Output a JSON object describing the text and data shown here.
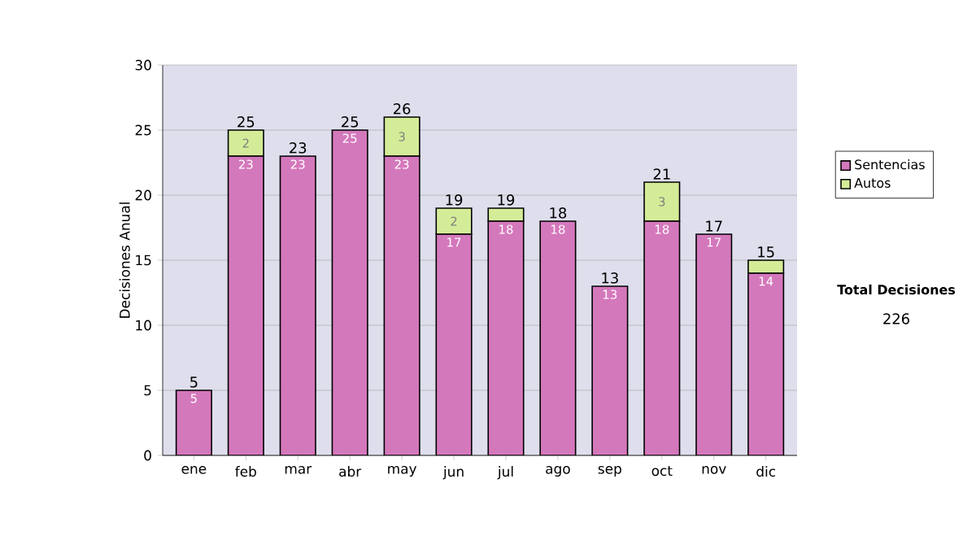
{
  "chart_data": {
    "type": "bar",
    "stacked": true,
    "ylabel": "Decisiones Anual",
    "categories": [
      "ene",
      "feb",
      "mar",
      "abr",
      "may",
      "jun",
      "jul",
      "ago",
      "sep",
      "oct",
      "nov",
      "dic"
    ],
    "series": [
      {
        "name": "Sentencias",
        "color": "#d478bc",
        "values": [
          5,
          23,
          23,
          25,
          23,
          17,
          18,
          18,
          13,
          18,
          17,
          14
        ],
        "value_labels": [
          "5",
          "23",
          "23",
          "25",
          "23",
          "17",
          "18",
          "18",
          "13",
          "18",
          "17",
          "14"
        ]
      },
      {
        "name": "Autos",
        "color": "#d4ec98",
        "values": [
          null,
          2,
          null,
          null,
          3,
          2,
          1,
          null,
          null,
          3,
          null,
          1
        ],
        "value_labels": [
          null,
          "2",
          null,
          null,
          "3",
          "2",
          null,
          null,
          null,
          "3",
          null,
          null
        ]
      }
    ],
    "totals": [
      "5",
      "25",
      "23",
      "25",
      "26",
      "19",
      "19",
      "18",
      "13",
      "21",
      "17",
      "15"
    ],
    "ylim": [
      0,
      30
    ],
    "yticks": [
      0,
      5,
      10,
      15,
      20,
      25,
      30
    ],
    "grid": "y",
    "legend": "right",
    "annotations": [
      "Total Decisiones",
      "226"
    ]
  }
}
